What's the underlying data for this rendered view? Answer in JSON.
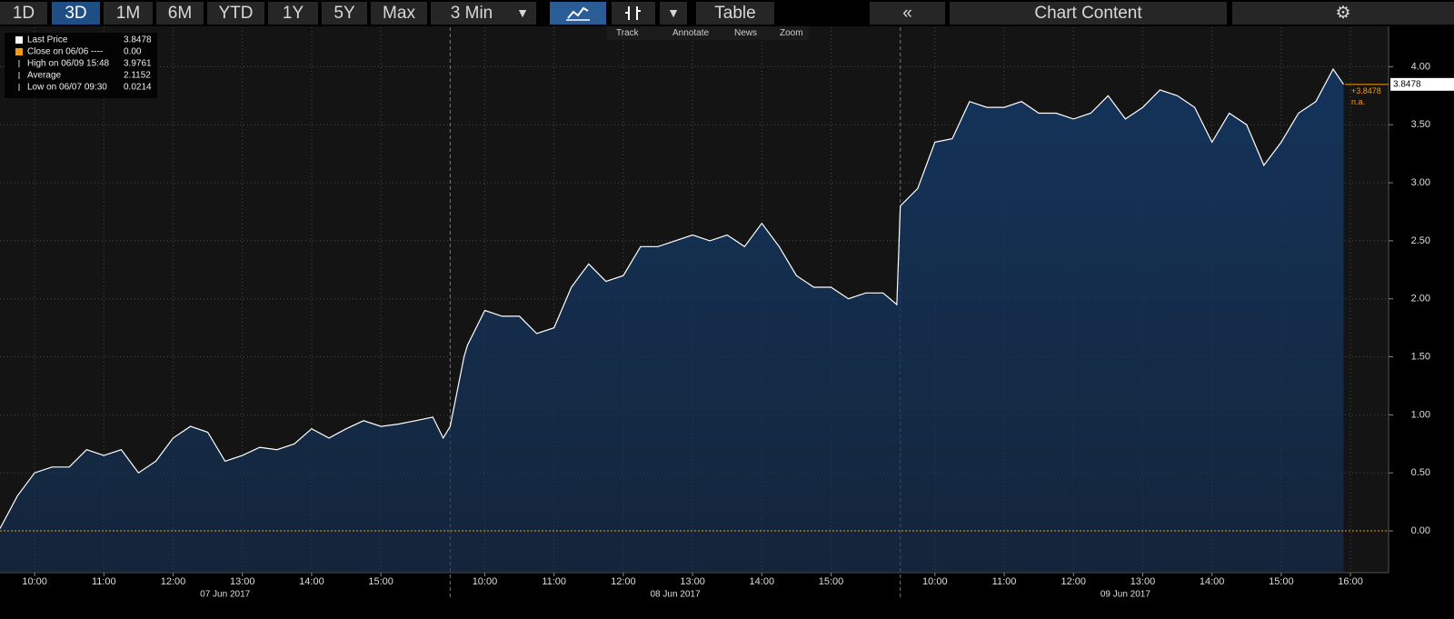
{
  "toolbar": {
    "ranges": [
      "1D",
      "3D",
      "1M",
      "6M",
      "YTD",
      "1Y",
      "5Y",
      "Max"
    ],
    "interval": "3 Min",
    "table": "Table",
    "content": "Chart Content",
    "tools": [
      "Track",
      "Annotate",
      "News",
      "Zoom"
    ]
  },
  "chart_data": {
    "type": "area",
    "series": [
      {
        "name": "Last Price",
        "color": "#ffffff",
        "last": 3.8478,
        "values": [
          0.02,
          0.3,
          0.5,
          0.55,
          0.55,
          0.7,
          0.65,
          0.7,
          0.5,
          0.6,
          0.8,
          0.9,
          0.85,
          0.6,
          0.65,
          0.72,
          0.7,
          0.75,
          0.88,
          0.8,
          0.88,
          0.95,
          0.9,
          0.92,
          0.95,
          0.98,
          0.8,
          0.9,
          1.5,
          1.6,
          1.9,
          1.85,
          1.85,
          1.7,
          1.75,
          2.1,
          2.3,
          2.15,
          2.2,
          2.45,
          2.45,
          2.5,
          2.55,
          2.5,
          2.55,
          2.45,
          2.65,
          2.45,
          2.2,
          2.1,
          2.1,
          2.0,
          2.05,
          2.05,
          1.95,
          2.8,
          2.95,
          3.35,
          3.38,
          3.7,
          3.65,
          3.65,
          3.7,
          3.6,
          3.6,
          3.55,
          3.6,
          3.75,
          3.55,
          3.65,
          3.8,
          3.75,
          3.65,
          3.35,
          3.6,
          3.5,
          3.15,
          3.35,
          3.6,
          3.7,
          3.98,
          3.8478
        ]
      }
    ],
    "x": [
      0,
      0.25,
      0.5,
      0.75,
      1,
      1.25,
      1.5,
      1.75,
      2,
      2.25,
      2.5,
      2.75,
      3,
      3.25,
      3.5,
      3.75,
      4,
      4.25,
      4.5,
      4.75,
      5,
      5.25,
      5.5,
      5.75,
      6,
      6.25,
      6.4,
      6.5,
      6.7,
      6.75,
      7,
      7.25,
      7.5,
      7.75,
      8,
      8.25,
      8.5,
      8.75,
      9,
      9.25,
      9.5,
      9.75,
      10,
      10.25,
      10.5,
      10.75,
      11,
      11.25,
      11.5,
      11.75,
      12,
      12.25,
      12.5,
      12.75,
      12.95,
      13,
      13.25,
      13.5,
      13.75,
      14,
      14.25,
      14.5,
      14.75,
      15,
      15.25,
      15.5,
      15.75,
      16,
      16.25,
      16.5,
      16.75,
      17,
      17.25,
      17.5,
      17.75,
      18,
      18.25,
      18.5,
      18.75,
      19,
      19.25,
      19.4
    ],
    "change": {
      "value": 3.8478,
      "label": "+3.8478"
    },
    "change_pct": "n.a.",
    "stats": [
      {
        "name": "Close on 06/06 ----",
        "value": 0,
        "label": "0.00"
      },
      {
        "name": "High on 06/09 15:48",
        "value": 3.9761
      },
      {
        "name": "Average",
        "value": 2.1152
      },
      {
        "name": "Low on 06/07 09:30",
        "value": 0.0214
      }
    ],
    "xlim": [
      0,
      20.05
    ],
    "ylim": [
      -0.36,
      4.34
    ],
    "yticks": [
      {
        "value": 0,
        "label": "0.00"
      },
      {
        "value": 0.5,
        "label": "0.50"
      },
      {
        "value": 1,
        "label": "1.00"
      },
      {
        "value": 1.5,
        "label": "1.50"
      },
      {
        "value": 2,
        "label": "2.00"
      },
      {
        "value": 2.5,
        "label": "2.50"
      },
      {
        "value": 3,
        "label": "3.00"
      },
      {
        "value": 3.5,
        "label": "3.50"
      },
      {
        "value": 4,
        "label": "4.00"
      }
    ],
    "xticks": [
      {
        "value": 0.5,
        "label": "10:00"
      },
      {
        "value": 1.5,
        "label": "11:00"
      },
      {
        "value": 2.5,
        "label": "12:00"
      },
      {
        "value": 3.5,
        "label": "13:00"
      },
      {
        "value": 4.5,
        "label": "14:00"
      },
      {
        "value": 5.5,
        "label": "15:00"
      },
      {
        "value": 7,
        "label": "10:00"
      },
      {
        "value": 8,
        "label": "11:00"
      },
      {
        "value": 9,
        "label": "12:00"
      },
      {
        "value": 10,
        "label": "13:00"
      },
      {
        "value": 11,
        "label": "14:00"
      },
      {
        "value": 12,
        "label": "15:00"
      },
      {
        "value": 13.5,
        "label": "10:00"
      },
      {
        "value": 14.5,
        "label": "11:00"
      },
      {
        "value": 15.5,
        "label": "12:00"
      },
      {
        "value": 16.5,
        "label": "13:00"
      },
      {
        "value": 17.5,
        "label": "14:00"
      },
      {
        "value": 18.5,
        "label": "15:00"
      },
      {
        "value": 19.5,
        "label": "16:00"
      }
    ],
    "days": [
      {
        "label": "07 Jun 2017",
        "start": 0,
        "end": 6.5
      },
      {
        "label": "08 Jun 2017",
        "start": 6.5,
        "end": 13
      },
      {
        "label": "09 Jun 2017",
        "start": 13,
        "end": 19.5
      }
    ],
    "grid": true,
    "close_color": "#f39c12",
    "fill_color": "#14335a"
  }
}
